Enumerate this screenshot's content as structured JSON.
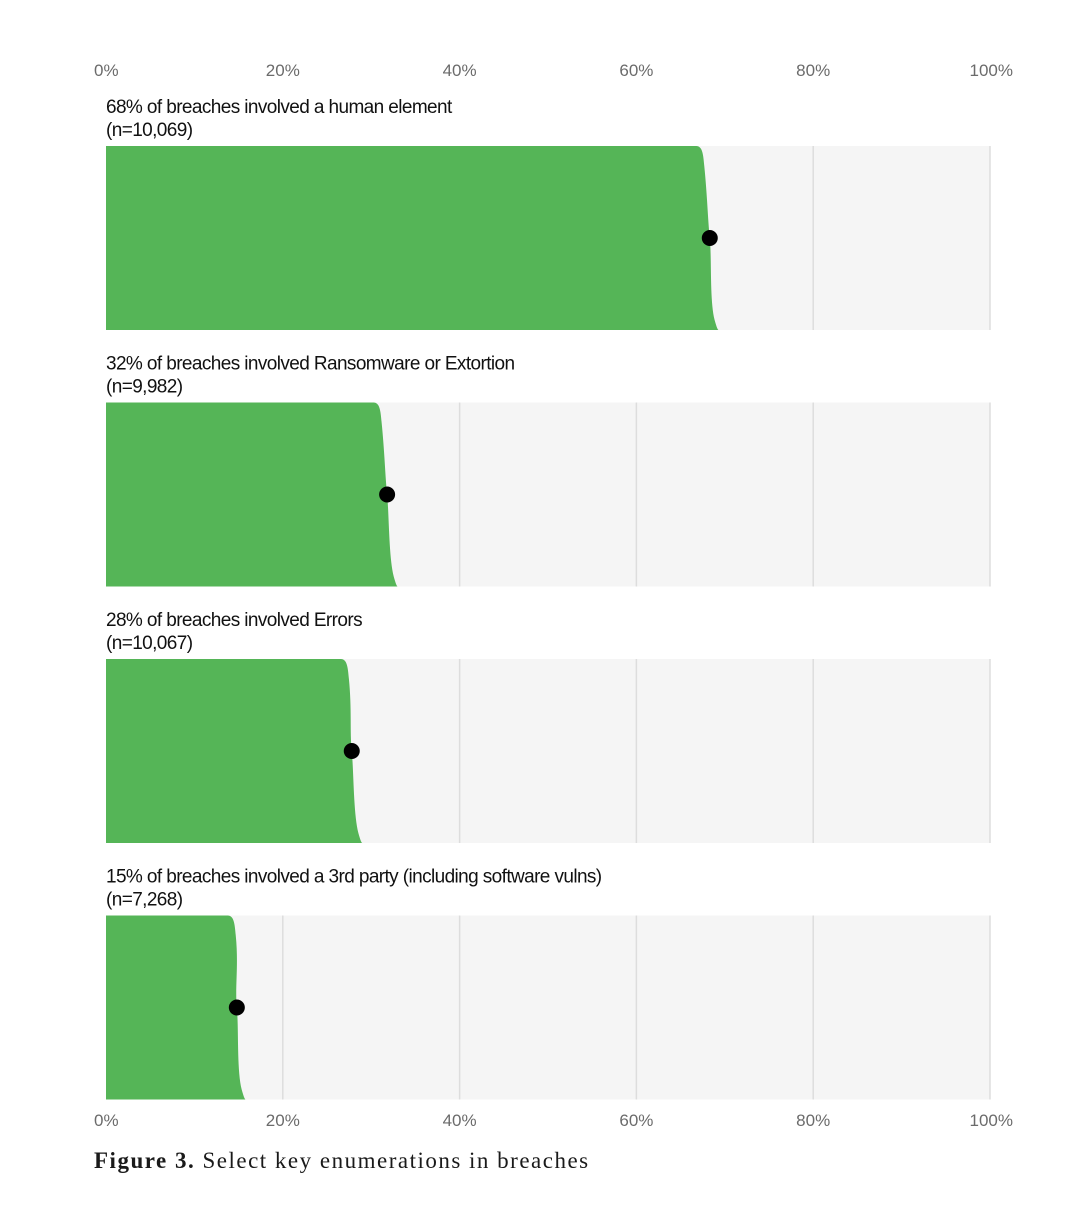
{
  "chart_data": {
    "type": "bar",
    "orientation": "horizontal",
    "x_ticks": [
      "0%",
      "20%",
      "40%",
      "60%",
      "80%",
      "100%"
    ],
    "xlim": [
      0,
      100
    ],
    "grid": true,
    "colors": {
      "bar": "#55b557",
      "track": "#f5f5f5",
      "grid": "#dddddd",
      "point": "#000000"
    },
    "panels": [
      {
        "title": "68% of breaches involved a human element",
        "n_label": "(n=10,069)",
        "value": 68.3,
        "interval": [
          67,
          69.3
        ]
      },
      {
        "title": "32% of breaches involved Ransomware or Extortion",
        "n_label": "(n=9,982)",
        "value": 31.8,
        "interval": [
          30.5,
          33.0
        ]
      },
      {
        "title": "28% of breaches involved Errors",
        "n_label": "(n=10,067)",
        "value": 27.8,
        "interval": [
          26.8,
          29.0
        ]
      },
      {
        "title": "15% of breaches involved a 3rd party (including software vulns)",
        "n_label": "(n=7,268)",
        "value": 14.8,
        "interval": [
          14.0,
          15.8
        ]
      }
    ]
  },
  "caption": {
    "label": "Figure 3.",
    "text": "Select key enumerations in breaches"
  }
}
